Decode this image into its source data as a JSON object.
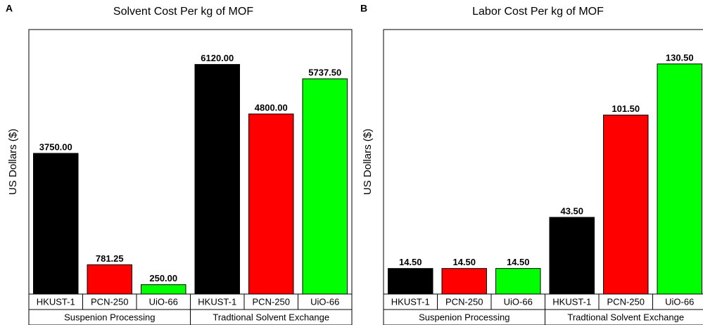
{
  "chart_data": [
    {
      "type": "bar",
      "panel": "A",
      "title": "Solvent Cost Per kg of MOF",
      "y_label": "US Dollars ($)",
      "categories": [
        "HKUST-1",
        "PCN-250",
        "UiO-66",
        "HKUST-1",
        "PCN-250",
        "UiO-66"
      ],
      "groups": [
        "Suspenion Processing",
        "Tradtional Solvent Exchange"
      ],
      "values": [
        3750,
        781.25,
        250,
        6120,
        4800,
        5737.5
      ],
      "value_labels": [
        "3750.00",
        "781.25",
        "250.00",
        "6120.00",
        "4800.00",
        "5737.50"
      ],
      "colors": [
        "#000000",
        "#ff0000",
        "#00ff00",
        "#000000",
        "#ff0000",
        "#00ff00"
      ],
      "ylim": [
        0,
        7050
      ]
    },
    {
      "type": "bar",
      "panel": "B",
      "title": "Labor Cost Per kg of MOF",
      "y_label": "US Dollars ($)",
      "categories": [
        "HKUST-1",
        "PCN-250",
        "UiO-66",
        "HKUST-1",
        "PCN-250",
        "UiO-66"
      ],
      "groups": [
        "Suspenion Processing",
        "Tradtional Solvent Exchange"
      ],
      "values": [
        14.5,
        14.5,
        14.5,
        43.5,
        101.5,
        130.5
      ],
      "value_labels": [
        "14.50",
        "14.50",
        "14.50",
        "43.50",
        "101.50",
        "130.50"
      ],
      "colors": [
        "#000000",
        "#ff0000",
        "#00ff00",
        "#000000",
        "#ff0000",
        "#00ff00"
      ],
      "ylim": [
        0,
        150
      ]
    }
  ]
}
